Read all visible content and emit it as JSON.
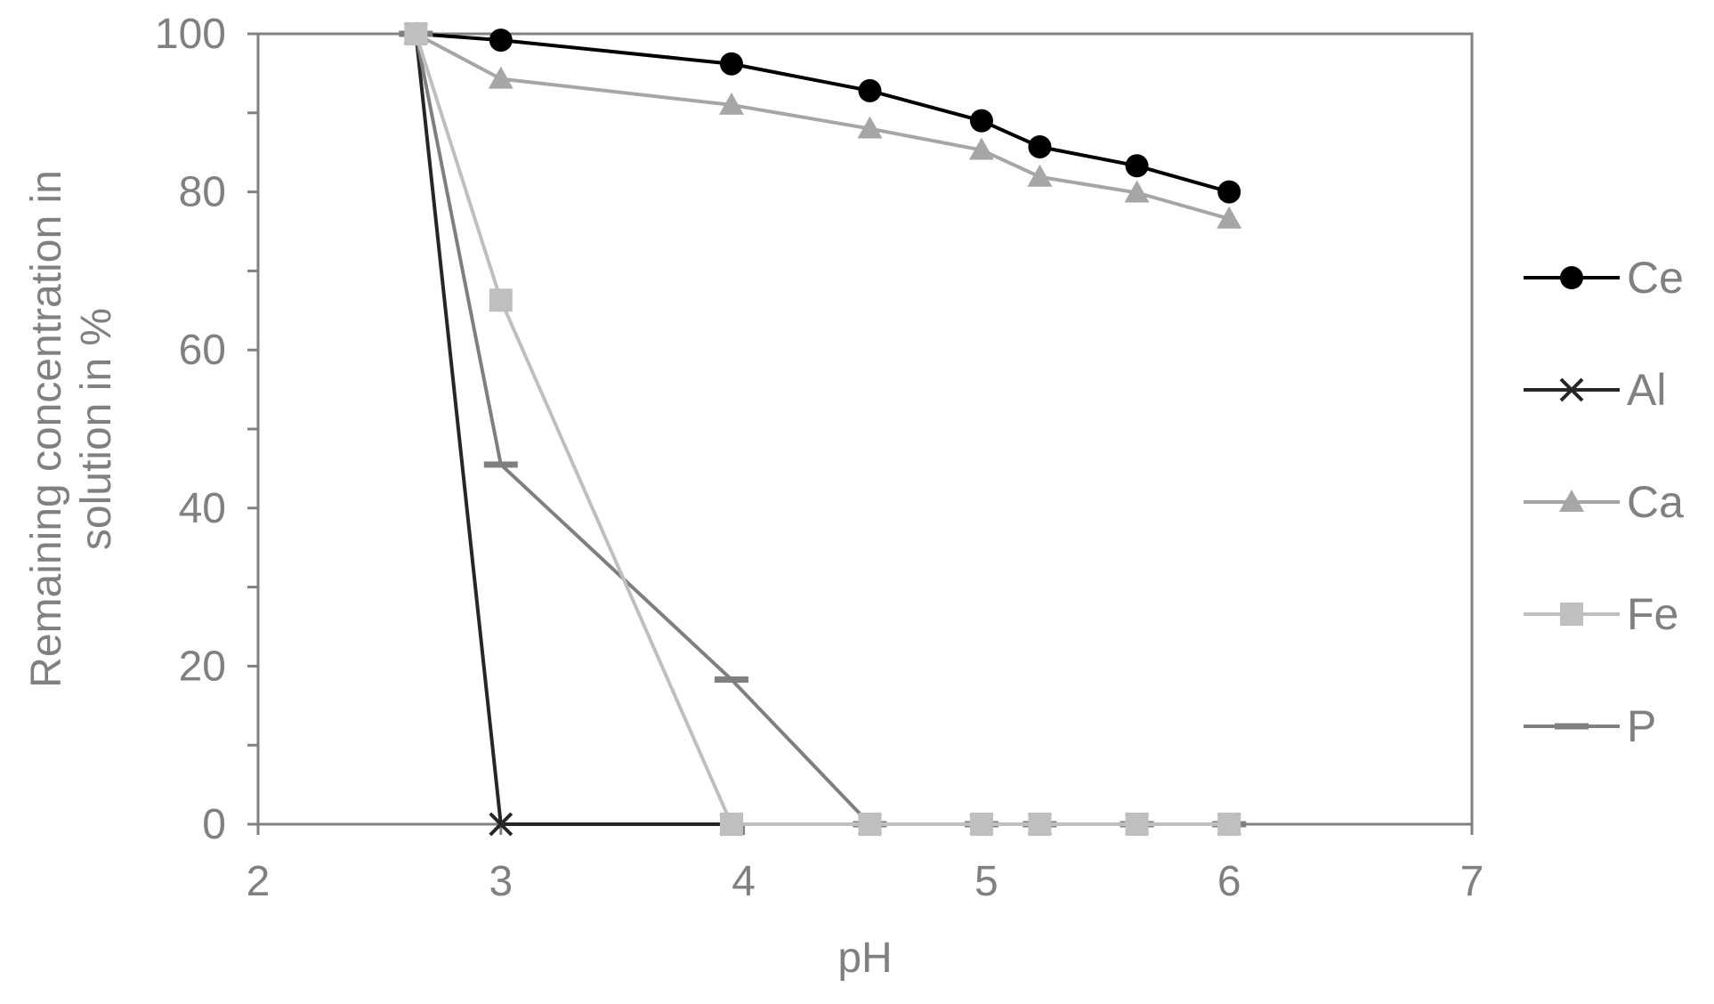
{
  "chart_data": {
    "type": "line",
    "xlabel": "pH",
    "ylabel_lines": [
      "Remaining concentration in",
      "solution in %"
    ],
    "xlim": [
      2,
      7
    ],
    "ylim": [
      0,
      100
    ],
    "x_ticks": [
      2,
      3,
      4,
      5,
      6,
      7
    ],
    "y_ticks": [
      0,
      20,
      40,
      60,
      80,
      100
    ],
    "y_minor_step": 10,
    "grid": false,
    "legend_position": "right",
    "series": [
      {
        "name": "Ce",
        "color": "#000000",
        "marker": "circle",
        "x": [
          2.65,
          3.0,
          3.95,
          4.52,
          4.98,
          5.22,
          5.62,
          6.0
        ],
        "y": [
          100,
          99.2,
          96.2,
          92.8,
          89.0,
          85.7,
          83.3,
          80.0
        ]
      },
      {
        "name": "Al",
        "color": "#262626",
        "marker": "x",
        "x": [
          2.65,
          3.0,
          3.95,
          4.52,
          4.98,
          5.22,
          5.62,
          6.0
        ],
        "y": [
          100,
          0,
          0,
          0,
          0,
          0,
          0,
          0
        ]
      },
      {
        "name": "Ca",
        "color": "#a6a6a6",
        "marker": "triangle",
        "x": [
          2.65,
          3.0,
          3.95,
          4.52,
          4.98,
          5.22,
          5.62,
          6.0
        ],
        "y": [
          100,
          94.3,
          91.0,
          88.0,
          85.3,
          81.9,
          79.9,
          76.6
        ]
      },
      {
        "name": "Fe",
        "color": "#bfbfbf",
        "marker": "square",
        "x": [
          2.65,
          3.0,
          3.95,
          4.52,
          4.98,
          5.22,
          5.62,
          6.0
        ],
        "y": [
          100,
          66.3,
          0,
          0,
          0,
          0,
          0,
          0
        ]
      },
      {
        "name": "P",
        "color": "#7f7f7f",
        "marker": "dash",
        "x": [
          2.65,
          3.0,
          3.95,
          4.52,
          4.98,
          5.22,
          5.62,
          6.0
        ],
        "y": [
          100,
          45.5,
          18.3,
          0,
          0,
          0,
          0,
          0
        ]
      }
    ]
  }
}
